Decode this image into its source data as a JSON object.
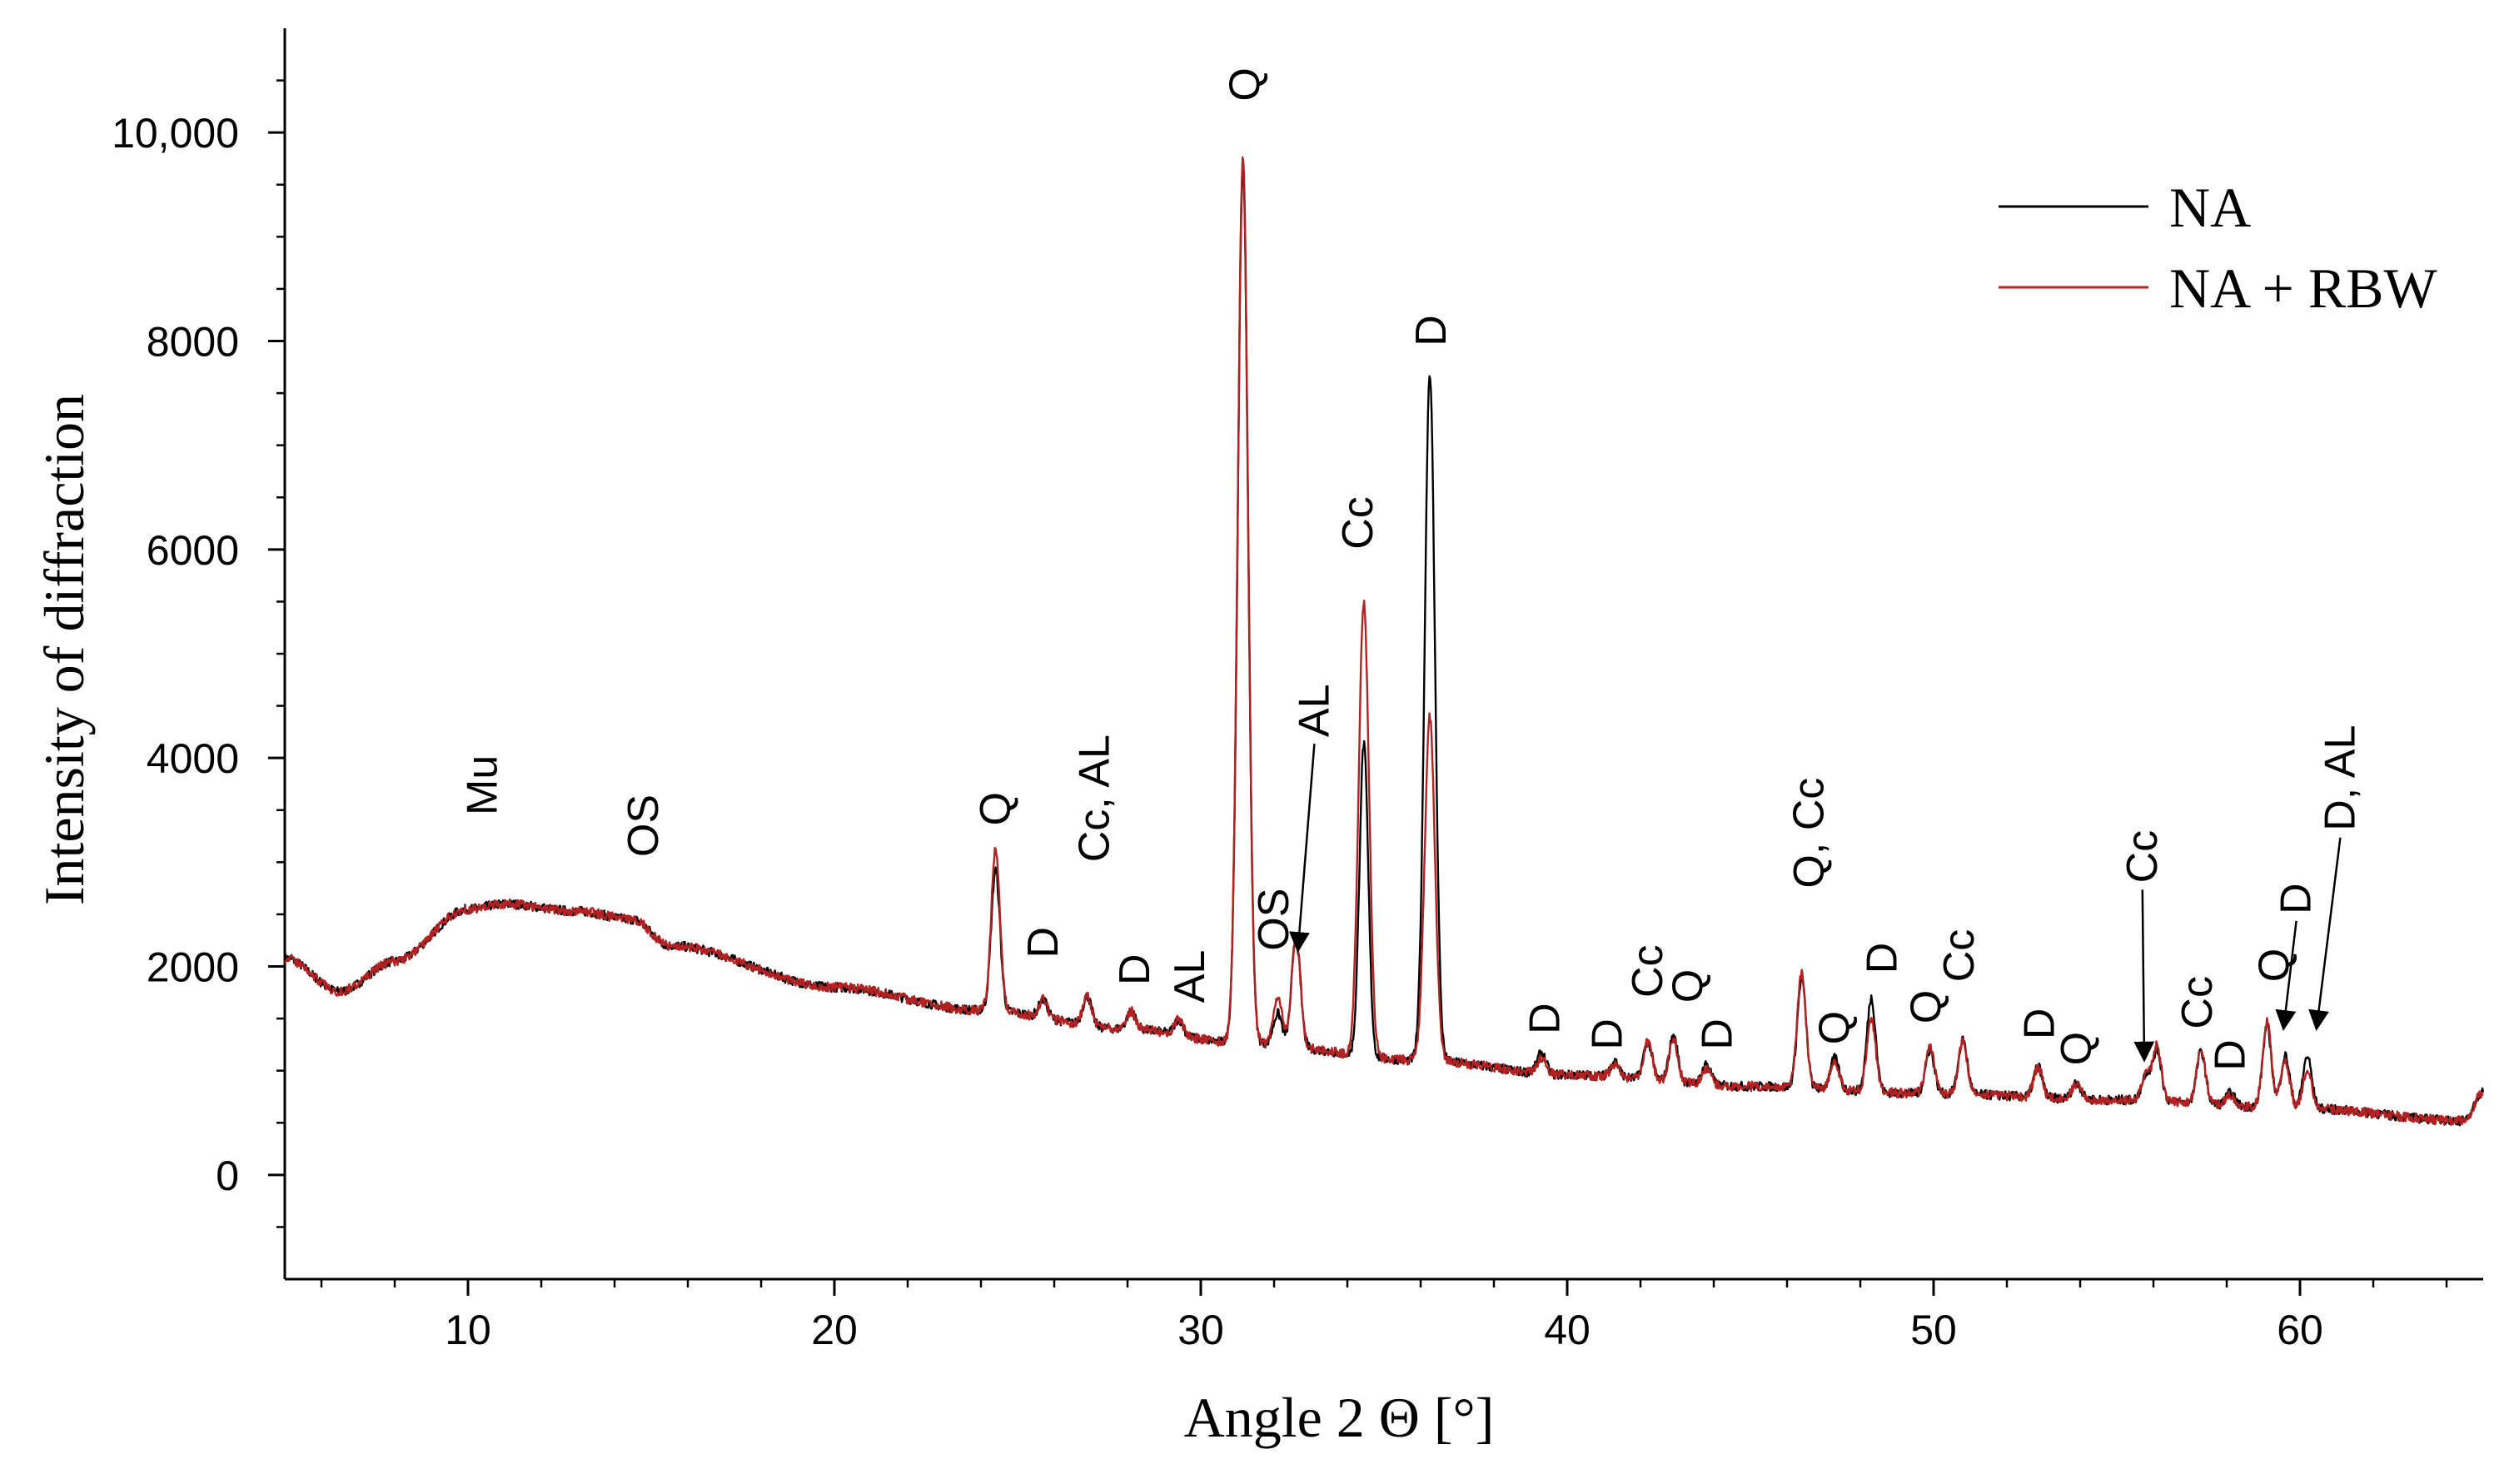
{
  "chart_data": {
    "type": "line",
    "title": "",
    "xlabel": "Angle  2 Θ [°]",
    "ylabel": "Intensity of diffraction",
    "xlim": [
      5,
      65
    ],
    "ylim": [
      -1000,
      11000
    ],
    "x_ticks": [
      10,
      20,
      30,
      40,
      50,
      60
    ],
    "x_tick_labels": [
      "10",
      "20",
      "30",
      "40",
      "50",
      "60"
    ],
    "y_ticks": [
      0,
      2000,
      4000,
      6000,
      8000,
      10000
    ],
    "y_tick_labels": [
      "0",
      "2000",
      "4000",
      "6000",
      "8000",
      "10,000"
    ],
    "grid": false,
    "legend_position": "top-right",
    "background_model": {
      "x": [
        5,
        6.5,
        8,
        10,
        11,
        13,
        14.5,
        15.5,
        20,
        24,
        28,
        31,
        36,
        40,
        45,
        50,
        55,
        60,
        64.5,
        65
      ],
      "y": [
        2080,
        1760,
        2050,
        2550,
        2600,
        2530,
        2450,
        2200,
        1800,
        1580,
        1400,
        1270,
        1100,
        960,
        850,
        780,
        720,
        640,
        520,
        800
      ]
    },
    "series": [
      {
        "name": "NA",
        "color": "#000000",
        "peaks": [
          {
            "x": 24.4,
            "y": 1350
          },
          {
            "x": 25.7,
            "y": 170
          },
          {
            "x": 26.9,
            "y": 280
          },
          {
            "x": 28.1,
            "y": 170
          },
          {
            "x": 29.4,
            "y": 150
          },
          {
            "x": 31.15,
            "y": 8400
          },
          {
            "x": 32.1,
            "y": 300
          },
          {
            "x": 32.6,
            "y": 1050
          },
          {
            "x": 34.45,
            "y": 3000
          },
          {
            "x": 36.25,
            "y": 6600
          },
          {
            "x": 39.3,
            "y": 200
          },
          {
            "x": 41.3,
            "y": 150
          },
          {
            "x": 42.2,
            "y": 360
          },
          {
            "x": 42.9,
            "y": 440
          },
          {
            "x": 43.8,
            "y": 200
          },
          {
            "x": 46.4,
            "y": 1050
          },
          {
            "x": 47.3,
            "y": 300
          },
          {
            "x": 48.3,
            "y": 900
          },
          {
            "x": 49.9,
            "y": 420
          },
          {
            "x": 50.8,
            "y": 520
          },
          {
            "x": 52.85,
            "y": 300
          },
          {
            "x": 53.9,
            "y": 160
          },
          {
            "x": 55.8,
            "y": 250
          },
          {
            "x": 56.1,
            "y": 480
          },
          {
            "x": 57.3,
            "y": 500
          },
          {
            "x": 58.1,
            "y": 120
          },
          {
            "x": 59.1,
            "y": 780
          },
          {
            "x": 59.6,
            "y": 500
          },
          {
            "x": 60.2,
            "y": 500
          }
        ]
      },
      {
        "name": "NA + RBW",
        "color": "#b22222",
        "peaks": [
          {
            "x": 24.4,
            "y": 1550
          },
          {
            "x": 25.7,
            "y": 170
          },
          {
            "x": 26.9,
            "y": 280
          },
          {
            "x": 28.1,
            "y": 170
          },
          {
            "x": 29.4,
            "y": 150
          },
          {
            "x": 31.15,
            "y": 8500
          },
          {
            "x": 32.1,
            "y": 450
          },
          {
            "x": 32.6,
            "y": 1050
          },
          {
            "x": 34.45,
            "y": 4350
          },
          {
            "x": 36.25,
            "y": 3300
          },
          {
            "x": 39.3,
            "y": 150
          },
          {
            "x": 41.3,
            "y": 120
          },
          {
            "x": 42.2,
            "y": 360
          },
          {
            "x": 42.9,
            "y": 400
          },
          {
            "x": 43.8,
            "y": 150
          },
          {
            "x": 46.4,
            "y": 1100
          },
          {
            "x": 47.3,
            "y": 280
          },
          {
            "x": 48.3,
            "y": 700
          },
          {
            "x": 49.9,
            "y": 450
          },
          {
            "x": 50.8,
            "y": 500
          },
          {
            "x": 52.85,
            "y": 280
          },
          {
            "x": 53.9,
            "y": 150
          },
          {
            "x": 55.8,
            "y": 230
          },
          {
            "x": 56.1,
            "y": 520
          },
          {
            "x": 57.3,
            "y": 520
          },
          {
            "x": 58.1,
            "y": 100
          },
          {
            "x": 59.1,
            "y": 820
          },
          {
            "x": 59.6,
            "y": 440
          },
          {
            "x": 60.2,
            "y": 380
          }
        ]
      }
    ],
    "annotations": [
      {
        "text": "Mu",
        "x": 10.4,
        "y": 3450,
        "rotated": true
      },
      {
        "text": "OS",
        "x": 14.8,
        "y": 3050,
        "rotated": true
      },
      {
        "text": "Q",
        "x": 24.4,
        "y": 3350,
        "rotated": true
      },
      {
        "text": "D",
        "x": 25.7,
        "y": 2080,
        "rotated": true
      },
      {
        "text": "Cc, AL",
        "x": 27.1,
        "y": 3000,
        "rotated": true
      },
      {
        "text": "D",
        "x": 28.2,
        "y": 1820,
        "rotated": true
      },
      {
        "text": "AL",
        "x": 29.7,
        "y": 1650,
        "rotated": true
      },
      {
        "text": "Q",
        "x": 31.2,
        "y": 10300,
        "rotated": true
      },
      {
        "text": "OS",
        "x": 32.0,
        "y": 2150,
        "rotated": true
      },
      {
        "text": "AL",
        "x": 33.1,
        "y": 4200,
        "rotated": true,
        "arrow_to": [
          32.65,
          2150
        ]
      },
      {
        "text": "Cc",
        "x": 34.3,
        "y": 6000,
        "rotated": true
      },
      {
        "text": "D",
        "x": 36.3,
        "y": 7950,
        "rotated": true
      },
      {
        "text": "D",
        "x": 39.4,
        "y": 1350,
        "rotated": true
      },
      {
        "text": "D",
        "x": 41.1,
        "y": 1200,
        "rotated": true
      },
      {
        "text": "Cc",
        "x": 42.2,
        "y": 1700,
        "rotated": true
      },
      {
        "text": "Q",
        "x": 43.3,
        "y": 1650,
        "rotated": true
      },
      {
        "text": "D",
        "x": 44.1,
        "y": 1200,
        "rotated": true
      },
      {
        "text": "Q, Cc",
        "x": 46.6,
        "y": 2750,
        "rotated": true
      },
      {
        "text": "Q",
        "x": 47.3,
        "y": 1250,
        "rotated": true
      },
      {
        "text": "D",
        "x": 48.6,
        "y": 1930,
        "rotated": true
      },
      {
        "text": "Q",
        "x": 49.8,
        "y": 1450,
        "rotated": true
      },
      {
        "text": "Cc",
        "x": 50.7,
        "y": 1850,
        "rotated": true
      },
      {
        "text": "D",
        "x": 52.9,
        "y": 1300,
        "rotated": true
      },
      {
        "text": "Q",
        "x": 53.9,
        "y": 1050,
        "rotated": true
      },
      {
        "text": "Cc",
        "x": 55.7,
        "y": 2800,
        "rotated": true,
        "arrow_to": [
          55.75,
          1100
        ]
      },
      {
        "text": "Cc",
        "x": 57.2,
        "y": 1400,
        "rotated": true
      },
      {
        "text": "D",
        "x": 58.1,
        "y": 1000,
        "rotated": true
      },
      {
        "text": "Q",
        "x": 59.3,
        "y": 1850,
        "rotated": true
      },
      {
        "text": "D",
        "x": 59.9,
        "y": 2500,
        "rotated": true,
        "arrow_to": [
          59.55,
          1400
        ]
      },
      {
        "text": "D, AL",
        "x": 61.1,
        "y": 3300,
        "rotated": true,
        "arrow_to": [
          60.45,
          1400
        ]
      }
    ]
  }
}
